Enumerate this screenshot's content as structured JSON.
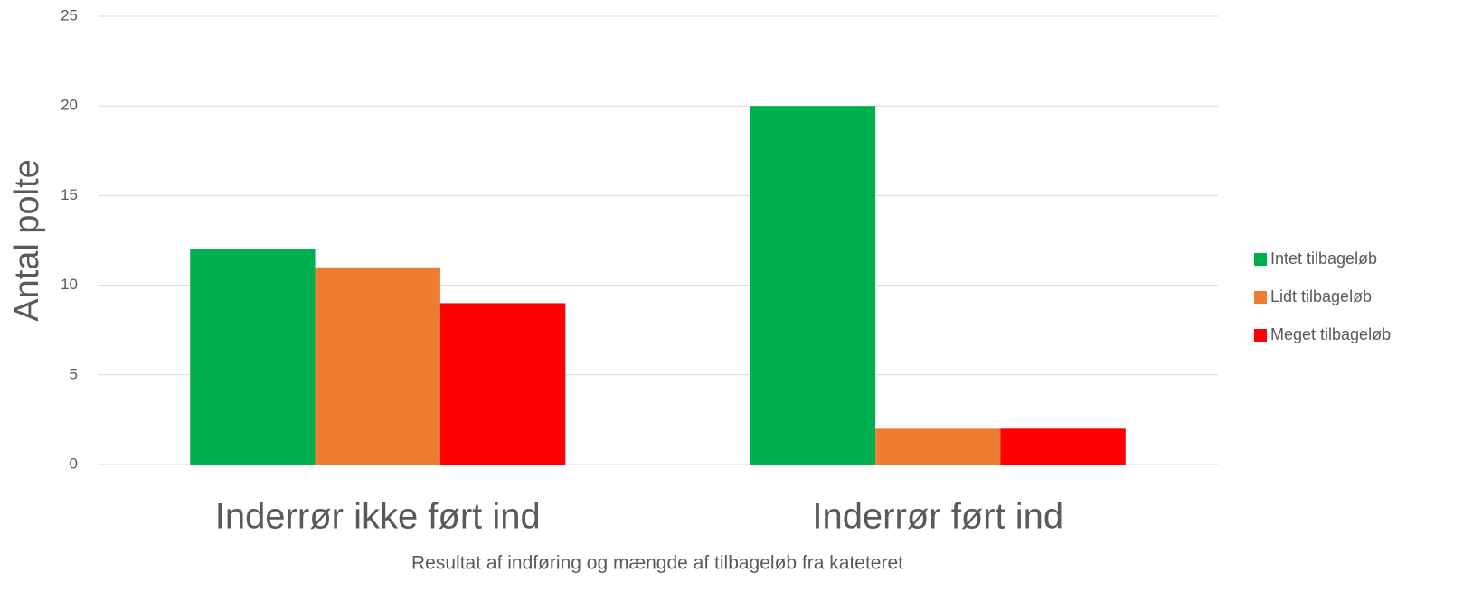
{
  "chart_data": {
    "type": "bar",
    "categories": [
      "Inderrør ikke ført ind",
      "Inderrør ført ind"
    ],
    "series": [
      {
        "name": "Intet tilbageløb",
        "color": "#00b050",
        "values": [
          12,
          20
        ]
      },
      {
        "name": "Lidt tilbageløb",
        "color": "#ed7d31",
        "values": [
          11,
          2
        ]
      },
      {
        "name": "Meget tilbageløb",
        "color": "#ff0000",
        "values": [
          9,
          2
        ]
      }
    ],
    "y_label": "Antal polte",
    "x_label": "Resultat af indføring og mængde af tilbageløb fra kateteret",
    "ylim": [
      0,
      25
    ],
    "yticks": [
      0,
      5,
      10,
      15,
      20,
      25
    ],
    "grid": true,
    "legend": "right"
  }
}
